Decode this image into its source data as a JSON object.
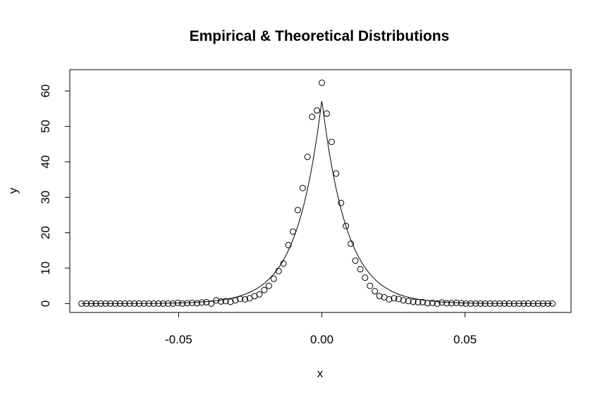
{
  "chart_data": {
    "type": "scatter",
    "title": "Empirical & Theoretical Distributions",
    "xlabel": "x",
    "ylabel": "y",
    "xlim": [
      -0.088,
      0.087
    ],
    "ylim": [
      -2.5,
      66
    ],
    "x_ticks": [
      {
        "value": -0.05,
        "label": "-0.05"
      },
      {
        "value": 0.0,
        "label": "0.00"
      },
      {
        "value": 0.05,
        "label": "0.05"
      }
    ],
    "y_ticks": [
      {
        "value": 0,
        "label": "0"
      },
      {
        "value": 10,
        "label": "10"
      },
      {
        "value": 20,
        "label": "20"
      },
      {
        "value": 30,
        "label": "30"
      },
      {
        "value": 40,
        "label": "40"
      },
      {
        "value": 50,
        "label": "50"
      },
      {
        "value": 60,
        "label": "60"
      }
    ],
    "grid": false,
    "series": [
      {
        "style": "points",
        "marker": "open-circle",
        "x": [
          -0.0839,
          -0.0822,
          -0.0805,
          -0.0789,
          -0.0772,
          -0.0755,
          -0.0738,
          -0.0721,
          -0.0705,
          -0.0688,
          -0.0671,
          -0.0654,
          -0.0638,
          -0.0621,
          -0.0604,
          -0.0587,
          -0.057,
          -0.0554,
          -0.0537,
          -0.052,
          -0.0503,
          -0.0487,
          -0.047,
          -0.0453,
          -0.0436,
          -0.0419,
          -0.0403,
          -0.0386,
          -0.0369,
          -0.0352,
          -0.0336,
          -0.0319,
          -0.0302,
          -0.0285,
          -0.0268,
          -0.0252,
          -0.0235,
          -0.0218,
          -0.0201,
          -0.0185,
          -0.0168,
          -0.0151,
          -0.0134,
          -0.0117,
          -0.0101,
          -0.0084,
          -0.0067,
          -0.005,
          -0.0034,
          -0.0017,
          0.0,
          0.0017,
          0.0034,
          0.005,
          0.0067,
          0.0084,
          0.0101,
          0.0117,
          0.0134,
          0.0151,
          0.0168,
          0.0185,
          0.0201,
          0.0218,
          0.0235,
          0.0252,
          0.0268,
          0.0285,
          0.0302,
          0.0319,
          0.0336,
          0.0352,
          0.0369,
          0.0386,
          0.0403,
          0.0419,
          0.0436,
          0.0453,
          0.047,
          0.0487,
          0.0503,
          0.052,
          0.0537,
          0.0554,
          0.057,
          0.0587,
          0.0604,
          0.0621,
          0.0638,
          0.0654,
          0.0671,
          0.0688,
          0.0705,
          0.0721,
          0.0738,
          0.0755,
          0.0772,
          0.0789,
          0.0805
        ],
        "y": [
          0,
          0,
          0,
          0,
          0,
          0,
          0,
          0,
          0,
          0,
          0,
          0,
          0,
          0,
          0,
          0,
          0,
          0,
          0,
          0,
          0.2,
          0,
          0.1,
          0.2,
          0.1,
          0.3,
          0.4,
          0,
          0.9,
          0.6,
          0.7,
          0.5,
          0.9,
          1.3,
          1.2,
          1.5,
          2.1,
          2.6,
          3.8,
          5.0,
          7.0,
          9.2,
          11.3,
          16.5,
          20.3,
          26.4,
          32.6,
          41.4,
          52.7,
          54.5,
          62.3,
          53.6,
          45.6,
          36.7,
          28.4,
          21.9,
          16.9,
          12.1,
          9.7,
          7.3,
          5.0,
          3.5,
          2.1,
          1.8,
          1.2,
          1.5,
          1.3,
          0.9,
          0.7,
          0.5,
          0.4,
          0.4,
          0.1,
          0.2,
          0,
          0.3,
          0.1,
          0.1,
          0.2,
          0.1,
          0,
          0,
          0,
          0,
          0,
          0,
          0,
          0,
          0,
          0,
          0,
          0,
          0,
          0,
          0,
          0,
          0,
          0,
          0
        ]
      },
      {
        "style": "line",
        "distribution": "laplace",
        "location": 0.0,
        "scale": 0.0087,
        "peak": 57.5
      }
    ]
  }
}
